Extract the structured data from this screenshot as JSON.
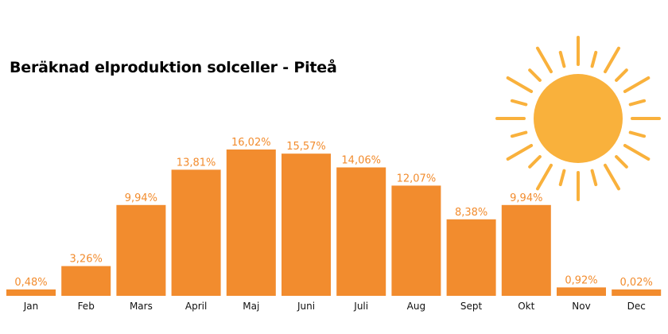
{
  "chart_data": {
    "type": "bar",
    "title": "Beräknad elproduktion solceller - Piteå",
    "categories": [
      "Jan",
      "Feb",
      "Mars",
      "April",
      "Maj",
      "Juni",
      "Juli",
      "Aug",
      "Sept",
      "Okt",
      "Nov",
      "Dec"
    ],
    "values": [
      0.48,
      3.26,
      9.94,
      13.81,
      16.02,
      15.57,
      14.06,
      12.07,
      8.38,
      9.94,
      0.92,
      0.02
    ],
    "value_labels": [
      "0,48%",
      "3,26%",
      "9,94%",
      "13,81%",
      "16,02%",
      "15,57%",
      "14,06%",
      "12,07%",
      "8,38%",
      "9,94%",
      "0,92%",
      "0,02%"
    ],
    "xlabel": "",
    "ylabel": "",
    "grid": false,
    "colors": {
      "bar": "#f28c2e",
      "label": "#f28c2e",
      "sun": "#f9b13c"
    },
    "decoration": "sun-icon"
  }
}
